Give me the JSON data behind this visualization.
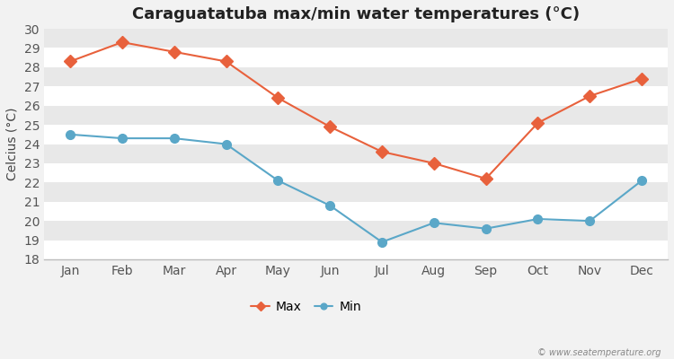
{
  "title": "Caraguatatuba max/min water temperatures (°C)",
  "ylabel": "Celcius (°C)",
  "months": [
    "Jan",
    "Feb",
    "Mar",
    "Apr",
    "May",
    "Jun",
    "Jul",
    "Aug",
    "Sep",
    "Oct",
    "Nov",
    "Dec"
  ],
  "max_temps": [
    28.3,
    29.3,
    28.8,
    28.3,
    26.4,
    24.9,
    23.6,
    23.0,
    22.2,
    25.1,
    26.5,
    27.4
  ],
  "min_temps": [
    24.5,
    24.3,
    24.3,
    24.0,
    22.1,
    20.8,
    18.9,
    19.9,
    19.6,
    20.1,
    20.0,
    22.1
  ],
  "max_color": "#e8613c",
  "min_color": "#5aa7c8",
  "bg_color": "#f2f2f2",
  "plot_bg_color": "#e8e8e8",
  "stripe_color": "#ebebeb",
  "grid_color": "#ffffff",
  "ylim": [
    18,
    30
  ],
  "yticks": [
    18,
    19,
    20,
    21,
    22,
    23,
    24,
    25,
    26,
    27,
    28,
    29,
    30
  ],
  "legend_labels": [
    "Max",
    "Min"
  ],
  "watermark": "© www.seatemperature.org",
  "title_fontsize": 13,
  "label_fontsize": 10,
  "tick_fontsize": 10,
  "marker_size_max": 7,
  "marker_size_min": 7
}
